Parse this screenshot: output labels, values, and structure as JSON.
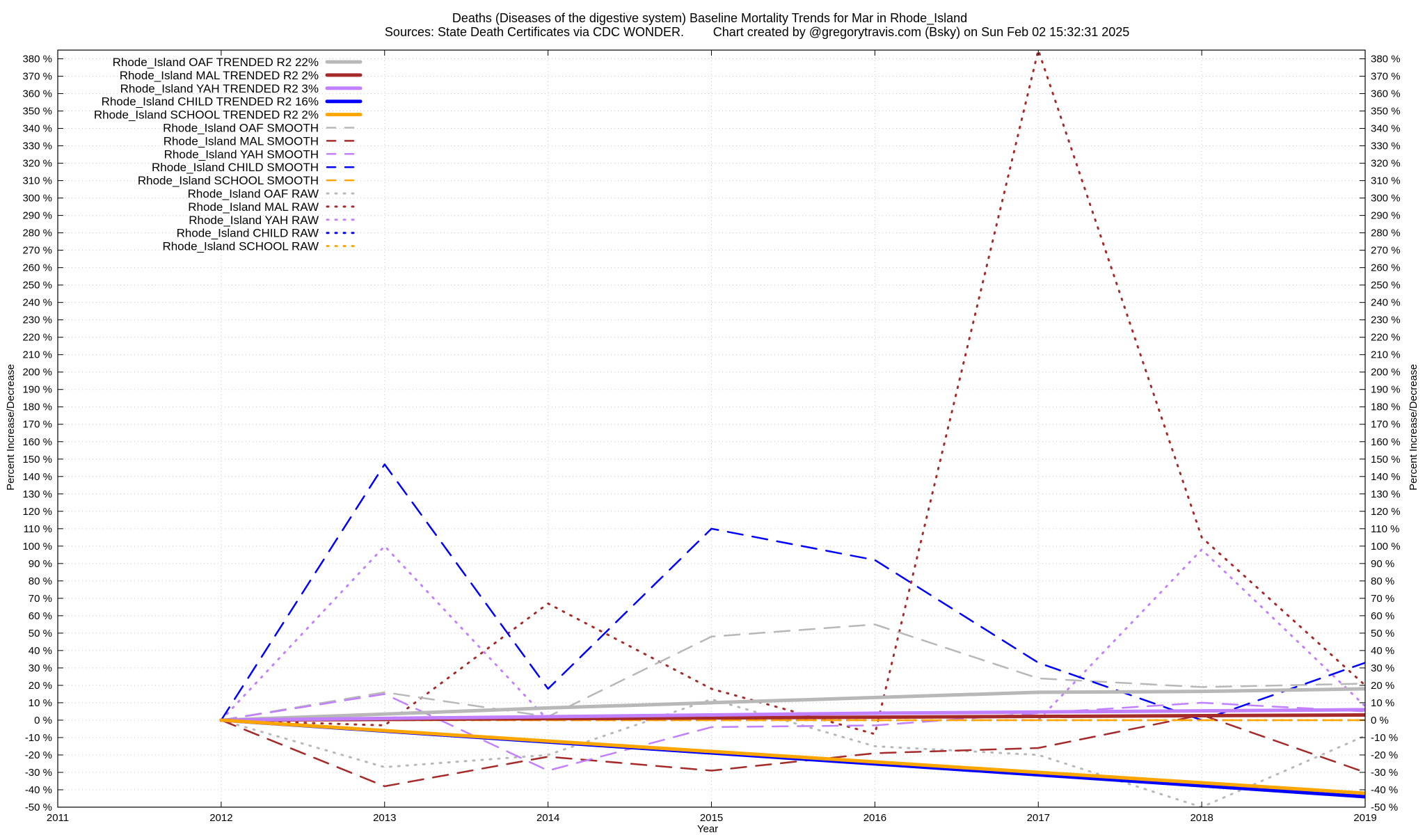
{
  "chart_data": {
    "type": "line",
    "title": "Deaths (Diseases of the digestive system)  Baseline Mortality Trends for Mar in Rhode_Island",
    "subtitle_left": "Sources: State Death Certificates via CDC WONDER.",
    "subtitle_right": "Chart created by @gregorytravis.com (Bsky) on Sun Feb 02 15:32:31 2025",
    "xlabel": "Year",
    "ylabel": "Percent Increase/Decrease",
    "ylabel_right": "Percent Increase/Decrease",
    "xlim": [
      2011,
      2019
    ],
    "ylim": [
      -50,
      385
    ],
    "x_ticks": [
      "2011",
      "2012",
      "2013",
      "2014",
      "2015",
      "2016",
      "2017",
      "2018",
      "2019"
    ],
    "y_tick_values": [
      -50,
      -40,
      -30,
      -20,
      -10,
      0,
      10,
      20,
      30,
      40,
      50,
      60,
      70,
      80,
      90,
      100,
      110,
      120,
      130,
      140,
      150,
      160,
      170,
      180,
      190,
      200,
      210,
      220,
      230,
      240,
      250,
      260,
      270,
      280,
      290,
      300,
      310,
      320,
      330,
      340,
      350,
      360,
      370,
      380
    ],
    "y_tick_suffix": " %",
    "grid": true,
    "legend_position": "top-left",
    "series": [
      {
        "name": "Rhode_Island OAF TRENDED R2  22%",
        "style": "trend",
        "color": "#b8b8b8",
        "x": [
          2012,
          2013,
          2014,
          2015,
          2016,
          2017,
          2018,
          2019
        ],
        "y": [
          0,
          3.5,
          7,
          10,
          13,
          16,
          16.5,
          18
        ]
      },
      {
        "name": "Rhode_Island MAL TRENDED R2  2%",
        "style": "trend",
        "color": "#a52a2a",
        "x": [
          2012,
          2019
        ],
        "y": [
          0,
          3
        ]
      },
      {
        "name": "Rhode_Island YAH TRENDED R2  3%",
        "style": "trend",
        "color": "#c080ff",
        "x": [
          2012,
          2015,
          2016,
          2019
        ],
        "y": [
          0,
          3,
          4,
          6
        ]
      },
      {
        "name": "Rhode_Island CHILD TRENDED R2  16%",
        "style": "trend",
        "color": "#0000ff",
        "x": [
          2012,
          2019
        ],
        "y": [
          0,
          -44
        ]
      },
      {
        "name": "Rhode_Island SCHOOL TRENDED R2  2%",
        "style": "trend",
        "color": "#ffa500",
        "x": [
          2012,
          2019
        ],
        "y": [
          0,
          -42
        ]
      },
      {
        "name": "Rhode_Island OAF SMOOTH",
        "style": "smooth",
        "color": "#b8b8b8",
        "x": [
          2012,
          2013,
          2014,
          2015,
          2016,
          2017,
          2018,
          2019
        ],
        "y": [
          0,
          16,
          2,
          48,
          55,
          24,
          19,
          21
        ]
      },
      {
        "name": "Rhode_Island MAL SMOOTH",
        "style": "smooth",
        "color": "#a52a2a",
        "x": [
          2012,
          2013,
          2014,
          2015,
          2016,
          2017,
          2018,
          2019
        ],
        "y": [
          0,
          -38,
          -21,
          -29,
          -19,
          -16,
          3,
          -30
        ]
      },
      {
        "name": "Rhode_Island YAH SMOOTH",
        "style": "smooth",
        "color": "#c080ff",
        "x": [
          2012,
          2013,
          2014,
          2015,
          2016,
          2017,
          2018,
          2019
        ],
        "y": [
          0,
          15,
          -29,
          -4,
          -3,
          4,
          10,
          5
        ]
      },
      {
        "name": "Rhode_Island CHILD SMOOTH",
        "style": "smooth",
        "color": "#0000ff",
        "x": [
          2012,
          2013,
          2014,
          2015,
          2016,
          2017,
          2018,
          2019
        ],
        "y": [
          0,
          147,
          18,
          110,
          92,
          33,
          0,
          33
        ]
      },
      {
        "name": "Rhode_Island SCHOOL SMOOTH",
        "style": "smooth",
        "color": "#ffa500",
        "x": [
          2012,
          2019
        ],
        "y": [
          0,
          0
        ]
      },
      {
        "name": "Rhode_Island OAF RAW",
        "style": "raw",
        "color": "#b8b8b8",
        "x": [
          2012,
          2013,
          2014,
          2015,
          2016,
          2017,
          2018,
          2019
        ],
        "y": [
          0,
          -27,
          -20,
          12,
          -15,
          -20,
          -50,
          -9
        ]
      },
      {
        "name": "Rhode_Island MAL RAW",
        "style": "raw",
        "color": "#a52a2a",
        "x": [
          2012,
          2013,
          2014,
          2015,
          2016,
          2017,
          2018,
          2019
        ],
        "y": [
          0,
          -3,
          67,
          18,
          -8,
          385,
          105,
          20
        ]
      },
      {
        "name": "Rhode_Island YAH RAW",
        "style": "raw",
        "color": "#c080ff",
        "x": [
          2012,
          2013,
          2014,
          2015,
          2016,
          2017,
          2018,
          2019
        ],
        "y": [
          0,
          100,
          0,
          0,
          0,
          0,
          98,
          8
        ]
      },
      {
        "name": "Rhode_Island CHILD RAW",
        "style": "raw",
        "color": "#0000ff",
        "x": [
          2012,
          2019
        ],
        "y": [
          0,
          0
        ]
      },
      {
        "name": "Rhode_Island SCHOOL RAW",
        "style": "raw",
        "color": "#ffa500",
        "x": [
          2012,
          2019
        ],
        "y": [
          0,
          0
        ]
      }
    ]
  }
}
